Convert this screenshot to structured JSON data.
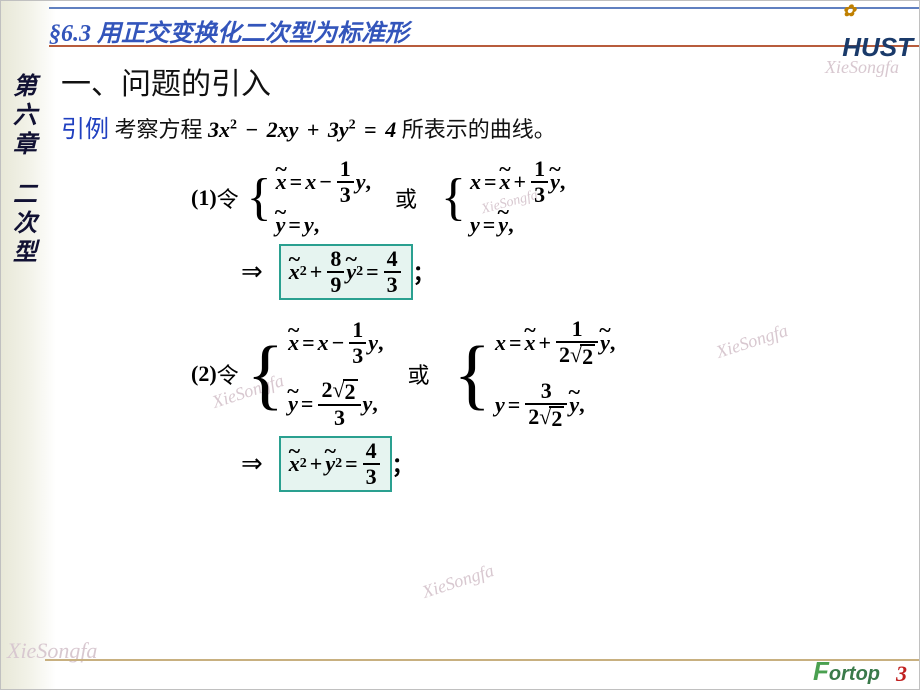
{
  "header": {
    "section": "§6.3 用正交变换化二次型为标准形",
    "logo": "HUST",
    "flower": "✿"
  },
  "chapter": {
    "c1": "第",
    "c2": "六",
    "c3": "章",
    "c4": "二",
    "c5": "次",
    "c6": "型"
  },
  "watermark": "XieSongfa",
  "content": {
    "h1": "一、问题的引入",
    "intro_label": "引例",
    "intro_text": "  考察方程 ",
    "intro_eq": "3x² − 2xy + 3y² = 4",
    "intro_tail": " 所表示的曲线。",
    "item1_num": "(1) ",
    "ling": "令",
    "or": "或",
    "item2_num": "(2) ",
    "arrow": "⇒",
    "semi": "；",
    "comma": "，",
    "eq": "=",
    "plus": "+",
    "minus": "−",
    "box1_colors": {
      "border": "#2aa090",
      "bg": "#e6f4f0"
    },
    "fracs": {
      "one_third": {
        "n": "1",
        "d": "3"
      },
      "eight_ninth": {
        "n": "8",
        "d": "9"
      },
      "four_third": {
        "n": "4",
        "d": "3"
      },
      "one_2r2": {
        "n": "1",
        "d": "2√2"
      },
      "two_r2_3": {
        "n": "2√2",
        "d": "3"
      },
      "three_2r2": {
        "n": "3",
        "d": "2√2"
      }
    }
  },
  "footer": {
    "page": "3",
    "brand": "Fortop"
  },
  "colors": {
    "header_text": "#3355bb",
    "header_rule": "#b85c3c",
    "top_rule": "#6080c0",
    "box_border": "#2aa090",
    "box_bg": "#e6f4f0",
    "page_num": "#c02020",
    "brand": "#3a7a4a"
  }
}
